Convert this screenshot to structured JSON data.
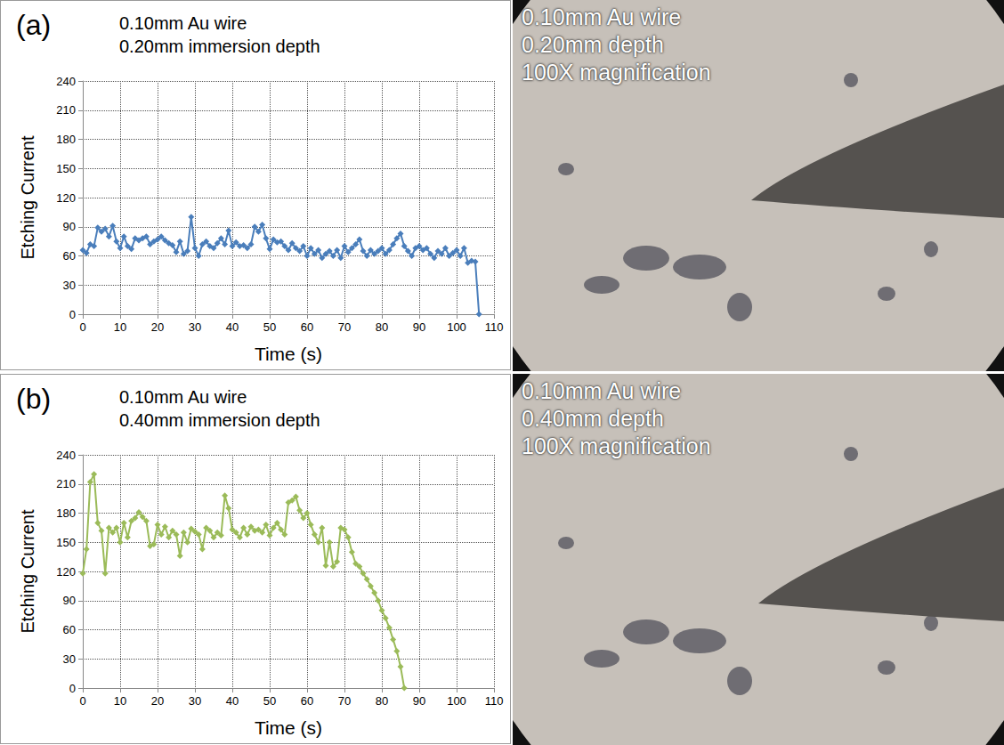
{
  "chart_data": [
    {
      "type": "line",
      "panel": "(a)",
      "title": "0.10mm Au wire",
      "subtitle": "0.20mm immersion depth",
      "x_label": "Time (s)",
      "y_label": "Etching Current",
      "xlim": [
        0,
        110
      ],
      "xticks": [
        0,
        10,
        20,
        30,
        40,
        50,
        60,
        70,
        80,
        90,
        100,
        110
      ],
      "ylim": [
        0,
        240
      ],
      "yticks": [
        0,
        30,
        60,
        90,
        120,
        150,
        180,
        210,
        240
      ],
      "grid": true,
      "marker": "diamond",
      "color": "#4a7ebb",
      "x": [
        0,
        1,
        2,
        3,
        4,
        5,
        6,
        7,
        8,
        9,
        10,
        11,
        12,
        13,
        14,
        15,
        16,
        17,
        18,
        19,
        20,
        21,
        22,
        23,
        24,
        25,
        26,
        27,
        28,
        29,
        30,
        31,
        32,
        33,
        34,
        35,
        36,
        37,
        38,
        39,
        40,
        41,
        42,
        43,
        44,
        45,
        46,
        47,
        48,
        49,
        50,
        51,
        52,
        53,
        54,
        55,
        56,
        57,
        58,
        59,
        60,
        61,
        62,
        63,
        64,
        65,
        66,
        67,
        68,
        69,
        70,
        71,
        72,
        73,
        74,
        75,
        76,
        77,
        78,
        79,
        80,
        81,
        82,
        83,
        84,
        85,
        86,
        87,
        88,
        89,
        90,
        91,
        92,
        93,
        94,
        95,
        96,
        97,
        98,
        99,
        100,
        101,
        102,
        103,
        104,
        105,
        106
      ],
      "values": [
        66,
        63,
        72,
        70,
        89,
        85,
        88,
        80,
        91,
        75,
        68,
        80,
        70,
        67,
        78,
        76,
        78,
        80,
        72,
        75,
        77,
        80,
        76,
        73,
        71,
        64,
        75,
        62,
        65,
        100,
        68,
        60,
        72,
        75,
        70,
        68,
        73,
        78,
        72,
        86,
        70,
        74,
        70,
        71,
        68,
        72,
        90,
        85,
        92,
        78,
        67,
        77,
        74,
        75,
        70,
        66,
        73,
        68,
        65,
        70,
        60,
        68,
        62,
        66,
        58,
        62,
        65,
        60,
        66,
        58,
        70,
        64,
        68,
        72,
        77,
        65,
        60,
        66,
        62,
        65,
        68,
        62,
        66,
        72,
        78,
        83,
        70,
        65,
        60,
        68,
        70,
        66,
        68,
        62,
        58,
        65,
        62,
        68,
        60,
        63,
        66,
        60,
        68,
        53,
        55,
        54,
        0
      ]
    },
    {
      "type": "line",
      "panel": "(b)",
      "title": "0.10mm Au wire",
      "subtitle": "0.40mm immersion depth",
      "x_label": "Time (s)",
      "y_label": "Etching Current",
      "xlim": [
        0,
        110
      ],
      "xticks": [
        0,
        10,
        20,
        30,
        40,
        50,
        60,
        70,
        80,
        90,
        100,
        110
      ],
      "ylim": [
        0,
        240
      ],
      "yticks": [
        0,
        30,
        60,
        90,
        120,
        150,
        180,
        210,
        240
      ],
      "grid": true,
      "marker": "diamond",
      "color": "#9bbb59",
      "x": [
        0,
        1,
        2,
        3,
        4,
        5,
        6,
        7,
        8,
        9,
        10,
        11,
        12,
        13,
        14,
        15,
        16,
        17,
        18,
        19,
        20,
        21,
        22,
        23,
        24,
        25,
        26,
        27,
        28,
        29,
        30,
        31,
        32,
        33,
        34,
        35,
        36,
        37,
        38,
        39,
        40,
        41,
        42,
        43,
        44,
        45,
        46,
        47,
        48,
        49,
        50,
        51,
        52,
        53,
        54,
        55,
        56,
        57,
        58,
        59,
        60,
        61,
        62,
        63,
        64,
        65,
        66,
        67,
        68,
        69,
        70,
        71,
        72,
        73,
        74,
        75,
        76,
        77,
        78,
        79,
        80,
        81,
        82,
        83,
        84,
        85,
        86
      ],
      "values": [
        118,
        143,
        212,
        220,
        170,
        162,
        118,
        165,
        160,
        165,
        150,
        170,
        155,
        172,
        175,
        181,
        176,
        172,
        146,
        148,
        168,
        158,
        166,
        155,
        162,
        158,
        136,
        160,
        150,
        164,
        161,
        158,
        143,
        165,
        162,
        155,
        160,
        157,
        198,
        185,
        163,
        160,
        155,
        165,
        158,
        166,
        162,
        163,
        160,
        168,
        157,
        165,
        170,
        163,
        158,
        191,
        193,
        197,
        183,
        175,
        180,
        168,
        158,
        150,
        165,
        126,
        150,
        125,
        130,
        165,
        163,
        155,
        140,
        128,
        125,
        118,
        112,
        105,
        98,
        90,
        80,
        72,
        62,
        50,
        38,
        22,
        0
      ]
    }
  ],
  "photos": [
    {
      "text": [
        "0.10mm Au wire",
        "0.20mm depth",
        "100X magnification"
      ]
    },
    {
      "text": [
        "0.10mm Au wire",
        "0.40mm depth",
        "100X magnification"
      ]
    }
  ]
}
